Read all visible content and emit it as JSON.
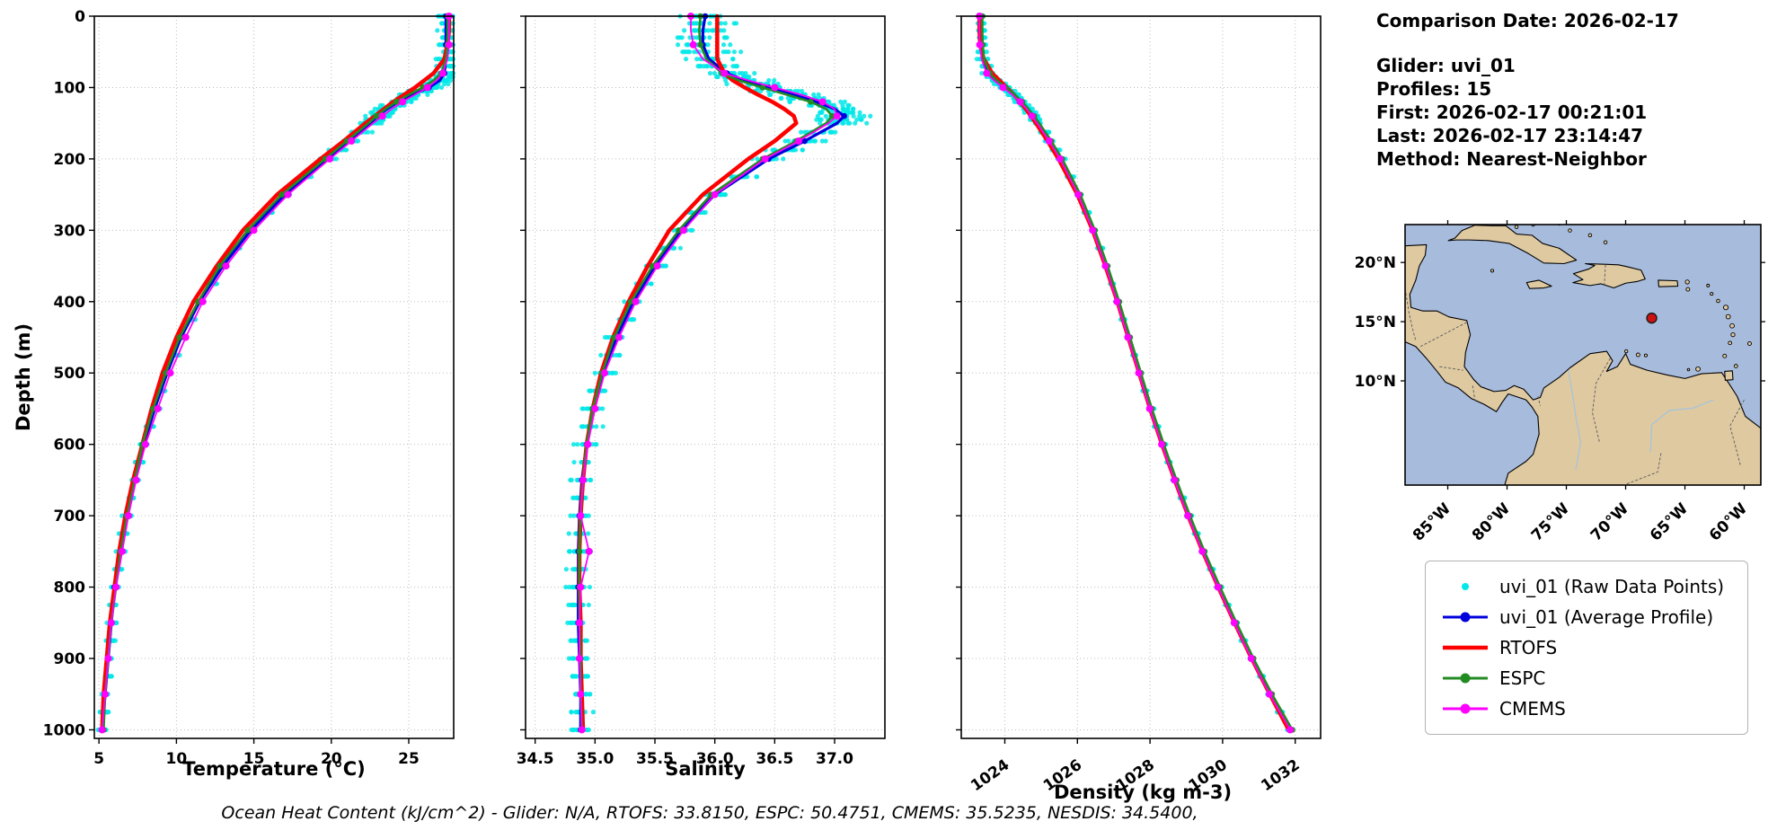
{
  "info": {
    "comparison_date": "Comparison Date: 2026-02-17",
    "glider": "Glider: uvi_01",
    "profiles": "Profiles: 15",
    "first": "First: 2026-02-17 00:21:01",
    "last": "Last: 2026-02-17 23:14:47",
    "method": "Method: Nearest-Neighbor"
  },
  "caption": "Ocean Heat Content (kJ/cm^2) - Glider: N/A,  RTOFS: 33.8150,  ESPC: 50.4751,  CMEMS: 35.5235,  NESDIS: 34.5400,",
  "legend": {
    "items": [
      {
        "label": "uvi_01 (Raw Data Points)",
        "color": "#00e8e8",
        "marker": "points"
      },
      {
        "label": "uvi_01 (Average Profile)",
        "color": "#0000dd",
        "marker": "line_marker"
      },
      {
        "label": "RTOFS",
        "color": "#ff0000",
        "marker": "line"
      },
      {
        "label": "ESPC",
        "color": "#228b22",
        "marker": "line_marker"
      },
      {
        "label": "CMEMS",
        "color": "#ff00ff",
        "marker": "line_marker"
      }
    ]
  },
  "map": {
    "extent_lon": [
      -88.6,
      -58.6
    ],
    "extent_lat": [
      1.2,
      23.2
    ],
    "lon_tick_labels": [
      "85°W",
      "80°W",
      "75°W",
      "70°W",
      "65°W",
      "60°W"
    ],
    "lon_tick_values": [
      -85,
      -80,
      -75,
      -70,
      -65,
      -60
    ],
    "lat_tick_labels": [
      "20°N",
      "15°N",
      "10°N"
    ],
    "lat_tick_values": [
      20,
      15,
      10
    ],
    "ocean_color": "#a7bbdc",
    "land_color": "#dec9a1",
    "marker": {
      "lon": -67.8,
      "lat": 15.3,
      "color": "#cc1111"
    }
  },
  "chart_data": {
    "type": "line",
    "note": "Ocean glider vs model vertical profiles, depth increases downward",
    "ylabel": "Depth (m)",
    "ylim": [
      0,
      1012
    ],
    "yticks": [
      0,
      100,
      200,
      300,
      400,
      500,
      600,
      700,
      800,
      900,
      1000
    ],
    "depths_m": [
      0,
      20,
      40,
      60,
      80,
      90,
      100,
      110,
      120,
      130,
      140,
      150,
      175,
      200,
      250,
      300,
      350,
      400,
      450,
      500,
      550,
      600,
      650,
      700,
      750,
      800,
      850,
      900,
      950,
      1000
    ],
    "series_meta": [
      {
        "key": "uvi01_avg",
        "name": "uvi_01 (Average Profile)",
        "color": "#0000dd",
        "line_width": 3.2,
        "markers": true
      },
      {
        "key": "rtofs",
        "name": "RTOFS",
        "color": "#ff0000",
        "line_width": 4.5,
        "markers": false
      },
      {
        "key": "espc",
        "name": "ESPC",
        "color": "#228b22",
        "line_width": 2.6,
        "markers": true
      },
      {
        "key": "cmems",
        "name": "CMEMS",
        "color": "#ff00ff",
        "line_width": 1.8,
        "markers": true
      }
    ],
    "raw": {
      "name": "uvi_01 (Raw Data Points)",
      "color": "#00e8e8",
      "profiles": 15
    },
    "charts": [
      {
        "xlabel": "Temperature (°C)",
        "xlim": [
          4.7,
          27.9
        ],
        "xticks": [
          5,
          10,
          15,
          20,
          25
        ],
        "xtick_labels": [
          "5",
          "10",
          "15",
          "20",
          "25"
        ],
        "rotate_xticks": false,
        "raw_sigma": 0.35,
        "series": {
          "uvi01_avg": [
            27.4,
            27.4,
            27.4,
            27.4,
            27.3,
            27.0,
            26.3,
            25.2,
            24.3,
            23.6,
            23.0,
            22.5,
            21.1,
            19.7,
            17.0,
            14.8,
            13.0,
            11.5,
            10.3,
            9.4,
            8.6,
            7.9,
            7.3,
            6.8,
            6.4,
            6.0,
            5.8,
            5.6,
            5.4,
            5.2
          ],
          "rtofs": [
            27.6,
            27.6,
            27.5,
            27.3,
            26.6,
            26.0,
            25.4,
            24.7,
            24.0,
            23.4,
            22.8,
            22.2,
            20.8,
            19.3,
            16.5,
            14.3,
            12.6,
            11.1,
            10.0,
            9.1,
            8.4,
            7.8,
            7.2,
            6.7,
            6.3,
            6.0,
            5.7,
            5.5,
            5.3,
            5.2
          ],
          "espc": [
            27.5,
            27.5,
            27.5,
            27.4,
            27.1,
            26.6,
            25.9,
            25.0,
            24.2,
            23.5,
            22.9,
            22.4,
            21.0,
            19.6,
            16.8,
            14.6,
            12.8,
            11.4,
            10.2,
            9.3,
            8.5,
            7.8,
            7.3,
            6.8,
            6.4,
            6.1,
            5.8,
            5.6,
            5.4,
            5.3
          ],
          "cmems": [
            27.6,
            27.6,
            27.6,
            27.5,
            27.2,
            26.8,
            26.2,
            25.4,
            24.6,
            23.9,
            23.3,
            22.7,
            21.3,
            19.9,
            17.2,
            15.0,
            13.2,
            11.7,
            10.6,
            9.6,
            8.8,
            8.0,
            7.4,
            6.9,
            6.5,
            6.1,
            5.8,
            5.6,
            5.4,
            5.2
          ]
        }
      },
      {
        "xlabel": "Salinity",
        "xlim": [
          34.42,
          37.42
        ],
        "xticks": [
          34.5,
          35.0,
          35.5,
          36.0,
          36.5,
          37.0
        ],
        "xtick_labels": [
          "34.5",
          "35.0",
          "35.5",
          "36.0",
          "36.5",
          "37.0"
        ],
        "rotate_xticks": false,
        "raw_sigma": 0.1,
        "series": {
          "uvi01_avg": [
            35.92,
            35.9,
            35.9,
            35.95,
            36.1,
            36.25,
            36.45,
            36.65,
            36.85,
            37.0,
            37.08,
            37.02,
            36.75,
            36.45,
            36.0,
            35.72,
            35.5,
            35.32,
            35.18,
            35.07,
            34.99,
            34.93,
            34.89,
            34.87,
            34.86,
            34.86,
            34.86,
            34.87,
            34.88,
            34.88
          ],
          "rtofs": [
            36.02,
            36.02,
            36.02,
            36.02,
            36.08,
            36.15,
            36.25,
            36.36,
            36.48,
            36.58,
            36.66,
            36.68,
            36.5,
            36.28,
            35.9,
            35.62,
            35.44,
            35.28,
            35.15,
            35.05,
            34.98,
            34.93,
            34.9,
            34.88,
            34.87,
            34.87,
            34.88,
            34.88,
            34.89,
            34.9
          ],
          "espc": [
            35.88,
            35.87,
            35.88,
            35.93,
            36.06,
            36.2,
            36.4,
            36.6,
            36.8,
            36.93,
            36.98,
            36.93,
            36.68,
            36.4,
            35.97,
            35.7,
            35.48,
            35.3,
            35.16,
            35.06,
            34.98,
            34.93,
            34.9,
            34.88,
            34.87,
            34.87,
            34.87,
            34.88,
            34.88,
            34.89
          ],
          "cmems": [
            35.8,
            35.8,
            35.82,
            35.9,
            36.08,
            36.28,
            36.5,
            36.72,
            36.9,
            37.0,
            37.02,
            36.95,
            36.7,
            36.42,
            36.0,
            35.74,
            35.52,
            35.34,
            35.2,
            35.08,
            35.0,
            34.94,
            34.9,
            34.88,
            34.95,
            34.88,
            34.87,
            34.87,
            34.88,
            34.89
          ]
        }
      },
      {
        "xlabel": "Density (kg m-3)",
        "xlim": [
          1022.8,
          1032.7
        ],
        "xticks": [
          1024,
          1026,
          1028,
          1030,
          1032
        ],
        "xtick_labels": [
          "1024",
          "1026",
          "1028",
          "1030",
          "1032"
        ],
        "rotate_xticks": true,
        "raw_sigma": 0.08,
        "series": {
          "uvi01_avg": [
            1023.35,
            1023.35,
            1023.36,
            1023.4,
            1023.55,
            1023.75,
            1024.0,
            1024.25,
            1024.45,
            1024.62,
            1024.78,
            1024.92,
            1025.25,
            1025.55,
            1026.05,
            1026.45,
            1026.8,
            1027.12,
            1027.42,
            1027.72,
            1028.02,
            1028.35,
            1028.7,
            1029.07,
            1029.47,
            1029.9,
            1030.35,
            1030.82,
            1031.32,
            1031.85
          ],
          "rtofs": [
            1023.3,
            1023.3,
            1023.32,
            1023.42,
            1023.65,
            1023.85,
            1024.05,
            1024.25,
            1024.42,
            1024.58,
            1024.72,
            1024.86,
            1025.18,
            1025.48,
            1026.0,
            1026.42,
            1026.77,
            1027.1,
            1027.4,
            1027.7,
            1028.0,
            1028.33,
            1028.68,
            1029.05,
            1029.45,
            1029.88,
            1030.33,
            1030.8,
            1031.3,
            1031.82
          ],
          "espc": [
            1023.38,
            1023.38,
            1023.39,
            1023.43,
            1023.58,
            1023.78,
            1024.03,
            1024.28,
            1024.48,
            1024.65,
            1024.81,
            1024.95,
            1025.28,
            1025.58,
            1026.08,
            1026.48,
            1026.83,
            1027.15,
            1027.45,
            1027.75,
            1028.05,
            1028.38,
            1028.73,
            1029.1,
            1029.5,
            1029.93,
            1030.38,
            1030.85,
            1031.36,
            1031.92
          ],
          "cmems": [
            1023.3,
            1023.3,
            1023.31,
            1023.36,
            1023.5,
            1023.7,
            1023.95,
            1024.2,
            1024.42,
            1024.6,
            1024.75,
            1024.89,
            1025.22,
            1025.52,
            1026.02,
            1026.42,
            1026.77,
            1027.09,
            1027.39,
            1027.69,
            1027.99,
            1028.32,
            1028.67,
            1029.04,
            1029.44,
            1029.87,
            1030.32,
            1030.79,
            1031.29,
            1031.86
          ]
        }
      }
    ]
  }
}
